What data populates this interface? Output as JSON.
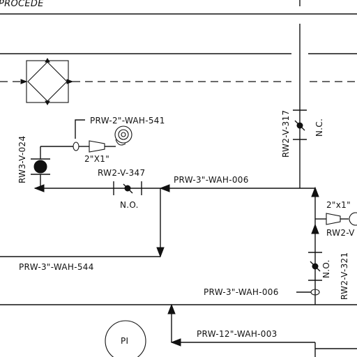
{
  "header": {
    "partial_title": "PROCEDE"
  },
  "lines": {
    "wah_541": "PRW-2\"-WAH-541",
    "wah_006_top": "PRW-3\"-WAH-006",
    "wah_544": "PRW-3\"-WAH-544",
    "wah_006_bottom": "PRW-3\"-WAH-006",
    "wah_003": "PRW-12\"-WAH-003"
  },
  "valves": {
    "rw3_v_024": "RW3-V-024",
    "rw2_v_347": "RW2-V-347",
    "rw2_v_347_state": "N.O.",
    "rw2_v_317": "RW2-V-317",
    "rw2_v_317_state": "N.C.",
    "rw2_v_321": "RW2-V-321",
    "rw2_v_321_state": "N.O.",
    "rw2_v_partial": "RW2-V"
  },
  "reducers": {
    "left": "2\"X1\"",
    "right": "2\"x1\""
  },
  "instruments": {
    "pressure_indicator": "PI"
  }
}
